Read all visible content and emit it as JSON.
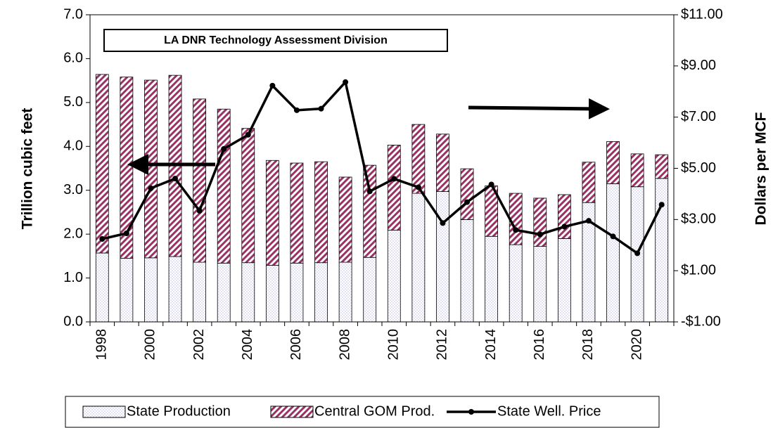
{
  "chart_data": {
    "type": "bar",
    "title": "LA DNR Technology Assessment Division",
    "y_label": "Trillion cubic feet",
    "y2_label": "Dollars per MCF",
    "categories": [
      "1998",
      null,
      "2000",
      null,
      "2002",
      null,
      "2004",
      null,
      "2006",
      null,
      "2008",
      null,
      "2010",
      null,
      "2012",
      null,
      "2014",
      null,
      "2016",
      null,
      "2018",
      null,
      "2020",
      null
    ],
    "stacked": true,
    "series": [
      {
        "name": "State Production",
        "type": "bar",
        "color": "#b8b8e0",
        "pattern": "dots",
        "values": [
          1.57,
          1.45,
          1.46,
          1.49,
          1.36,
          1.34,
          1.35,
          1.29,
          1.34,
          1.35,
          1.36,
          1.47,
          2.09,
          2.93,
          2.97,
          2.33,
          1.95,
          1.76,
          1.72,
          1.9,
          2.72,
          3.15,
          3.08,
          3.27
        ]
      },
      {
        "name": "Central GOM Prod.",
        "type": "bar",
        "color": "#993366",
        "pattern": "hatch",
        "values": [
          4.07,
          4.13,
          4.05,
          4.13,
          3.72,
          3.51,
          3.06,
          2.39,
          2.28,
          2.3,
          1.94,
          2.1,
          1.94,
          1.57,
          1.31,
          1.16,
          1.15,
          1.17,
          1.1,
          1.0,
          0.92,
          0.96,
          0.75,
          0.54
        ]
      },
      {
        "name": "State Well. Price",
        "type": "line",
        "axis": "y2",
        "color": "#000000",
        "values": [
          2.24,
          2.46,
          4.22,
          4.6,
          3.34,
          5.76,
          6.31,
          8.23,
          7.27,
          7.33,
          8.37,
          4.1,
          4.59,
          4.26,
          2.86,
          3.68,
          4.37,
          2.59,
          2.42,
          2.72,
          2.95,
          2.34,
          1.68,
          3.58
        ]
      }
    ],
    "ylim": [
      0,
      7
    ],
    "yticks": [
      {
        "value": 0,
        "label": "0.0"
      },
      {
        "value": 1,
        "label": "1.0"
      },
      {
        "value": 2,
        "label": "2.0"
      },
      {
        "value": 3,
        "label": "3.0"
      },
      {
        "value": 4,
        "label": "4.0"
      },
      {
        "value": 5,
        "label": "5.0"
      },
      {
        "value": 6,
        "label": "6.0"
      },
      {
        "value": 7,
        "label": "7.0"
      }
    ],
    "y2lim": [
      -1,
      11
    ],
    "y2ticks": [
      {
        "value": -1,
        "label": "-$1.00"
      },
      {
        "value": 1,
        "label": "$1.00"
      },
      {
        "value": 3,
        "label": "$3.00"
      },
      {
        "value": 5,
        "label": "$5.00"
      },
      {
        "value": 7,
        "label": "$7.00"
      },
      {
        "value": 9,
        "label": "$9.00"
      },
      {
        "value": 11,
        "label": "$11.00"
      }
    ],
    "grid": false,
    "legend": "bottom"
  }
}
